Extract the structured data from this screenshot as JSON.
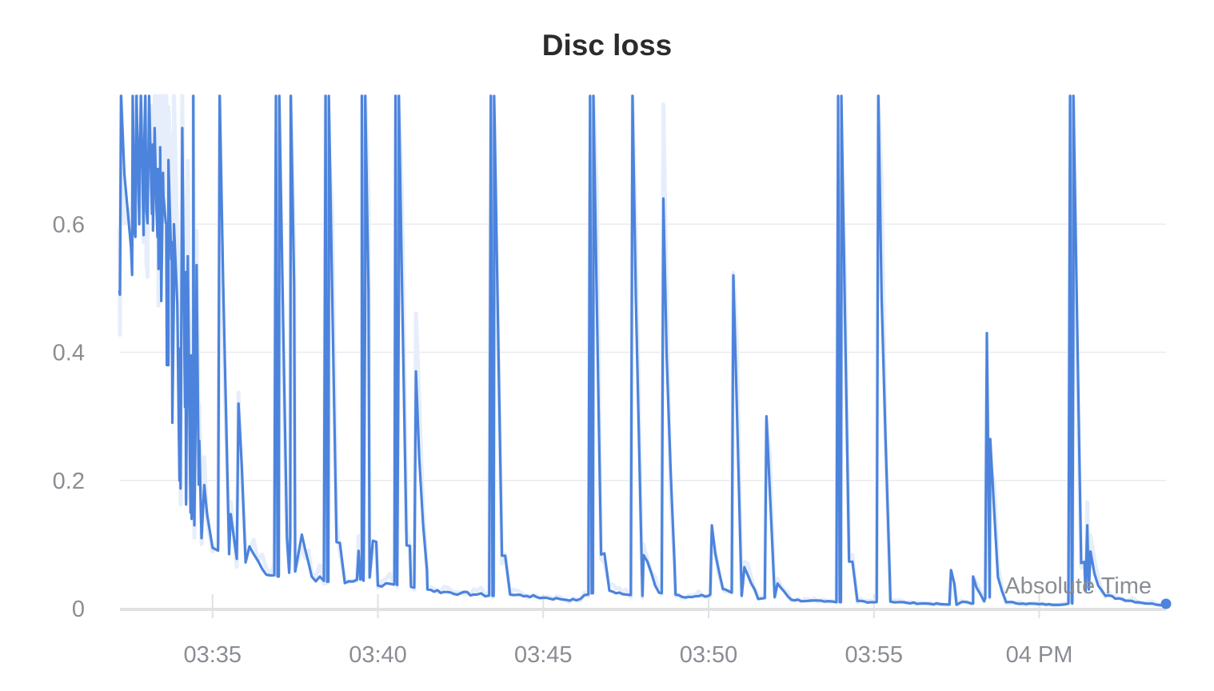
{
  "chart_data": {
    "type": "line",
    "title": "Disc loss",
    "xlabel": "Absolute Time",
    "ylabel": "",
    "ylim": [
      0,
      0.8
    ],
    "xlim": [
      "03:32:12",
      "04:03:50"
    ],
    "grid": true,
    "legend": "none",
    "y_ticks": [
      {
        "value": 0,
        "label": "0"
      },
      {
        "value": 0.2,
        "label": "0.2"
      },
      {
        "value": 0.4,
        "label": "0.4"
      },
      {
        "value": 0.6,
        "label": "0.6"
      }
    ],
    "x_ticks": [
      {
        "value": "03:35",
        "label": "03:35"
      },
      {
        "value": "03:40",
        "label": "03:40"
      },
      {
        "value": "03:45",
        "label": "03:45"
      },
      {
        "value": "03:50",
        "label": "03:50"
      },
      {
        "value": "03:55",
        "label": "03:55"
      },
      {
        "value": "04:00",
        "label": "04 PM"
      }
    ],
    "colors": {
      "line": "#4c83dc",
      "raw": "#e6eefb",
      "grid": "#e9ebef",
      "axis": "#dfe1e4",
      "tick_text": "#8a8d93"
    },
    "series": [
      {
        "baseline": [
          [
            "03:32:12",
            0.49
          ],
          [
            "03:32:40",
            0.58
          ],
          [
            "03:33:00",
            0.62
          ],
          [
            "03:33:20",
            0.58
          ],
          [
            "03:33:40",
            0.38
          ],
          [
            "03:34:00",
            0.2
          ],
          [
            "03:34:20",
            0.15
          ],
          [
            "03:34:40",
            0.11
          ],
          [
            "03:35:00",
            0.095
          ],
          [
            "03:35:30",
            0.085
          ],
          [
            "03:36:00",
            0.072
          ],
          [
            "03:36:30",
            0.062
          ],
          [
            "03:37:00",
            0.05
          ],
          [
            "03:37:30",
            0.058
          ],
          [
            "03:38:00",
            0.05
          ],
          [
            "03:38:30",
            0.042
          ],
          [
            "03:39:00",
            0.04
          ],
          [
            "03:39:30",
            0.046
          ],
          [
            "03:40:00",
            0.036
          ],
          [
            "03:40:30",
            0.038
          ],
          [
            "03:41:00",
            0.034
          ],
          [
            "03:41:30",
            0.03
          ],
          [
            "03:42:00",
            0.026
          ],
          [
            "03:42:30",
            0.024
          ],
          [
            "03:43:00",
            0.022
          ],
          [
            "03:43:30",
            0.02
          ],
          [
            "03:44:00",
            0.022
          ],
          [
            "03:44:30",
            0.02
          ],
          [
            "03:45:00",
            0.017
          ],
          [
            "03:45:30",
            0.015
          ],
          [
            "03:46:00",
            0.013
          ],
          [
            "03:46:30",
            0.024
          ],
          [
            "03:47:00",
            0.028
          ],
          [
            "03:47:30",
            0.022
          ],
          [
            "03:48:00",
            0.02
          ],
          [
            "03:48:30",
            0.025
          ],
          [
            "03:49:00",
            0.022
          ],
          [
            "03:49:30",
            0.018
          ],
          [
            "03:50:00",
            0.02
          ],
          [
            "03:50:30",
            0.03
          ],
          [
            "03:51:00",
            0.02
          ],
          [
            "03:51:30",
            0.015
          ],
          [
            "03:52:00",
            0.018
          ],
          [
            "03:52:30",
            0.014
          ],
          [
            "03:53:00",
            0.012
          ],
          [
            "03:53:30",
            0.011
          ],
          [
            "03:54:00",
            0.01
          ],
          [
            "03:54:30",
            0.012
          ],
          [
            "03:55:00",
            0.01
          ],
          [
            "03:55:30",
            0.011
          ],
          [
            "03:56:00",
            0.009
          ],
          [
            "03:56:30",
            0.008
          ],
          [
            "03:57:00",
            0.007
          ],
          [
            "03:57:30",
            0.006
          ],
          [
            "03:58:00",
            0.008
          ],
          [
            "03:58:30",
            0.018
          ],
          [
            "03:59:00",
            0.01
          ],
          [
            "03:59:30",
            0.008
          ],
          [
            "04:00:00",
            0.007
          ],
          [
            "04:00:30",
            0.006
          ],
          [
            "04:01:00",
            0.008
          ],
          [
            "04:01:30",
            0.03
          ],
          [
            "04:02:00",
            0.02
          ],
          [
            "04:02:30",
            0.015
          ],
          [
            "04:03:00",
            0.01
          ],
          [
            "04:03:50",
            0.005
          ]
        ],
        "spikes": [
          [
            "03:32:14",
            0.8
          ],
          [
            "03:32:35",
            0.8
          ],
          [
            "03:32:42",
            0.8
          ],
          [
            "03:32:50",
            0.8
          ],
          [
            "03:32:58",
            0.8
          ],
          [
            "03:33:05",
            0.8
          ],
          [
            "03:33:15",
            0.75
          ],
          [
            "03:33:25",
            0.72
          ],
          [
            "03:33:30",
            0.68
          ],
          [
            "03:33:40",
            0.7
          ],
          [
            "03:33:50",
            0.6
          ],
          [
            "03:34:05",
            0.75
          ],
          [
            "03:34:15",
            0.55
          ],
          [
            "03:34:25",
            0.8
          ],
          [
            "03:34:30",
            0.35
          ],
          [
            "03:35:13",
            0.8
          ],
          [
            "03:35:47",
            0.32
          ],
          [
            "03:36:55",
            0.8
          ],
          [
            "03:37:01",
            0.8
          ],
          [
            "03:37:22",
            0.8
          ],
          [
            "03:38:25",
            0.8
          ],
          [
            "03:38:31",
            0.8
          ],
          [
            "03:39:25",
            0.09
          ],
          [
            "03:39:31",
            0.8
          ],
          [
            "03:39:37",
            0.8
          ],
          [
            "03:40:32",
            0.8
          ],
          [
            "03:40:38",
            0.8
          ],
          [
            "03:41:09",
            0.37
          ],
          [
            "03:43:25",
            0.8
          ],
          [
            "03:43:31",
            0.8
          ],
          [
            "03:46:25",
            0.8
          ],
          [
            "03:46:31",
            0.8
          ],
          [
            "03:47:42",
            0.8
          ],
          [
            "03:48:38",
            0.64
          ],
          [
            "03:50:06",
            0.13
          ],
          [
            "03:50:45",
            0.52
          ],
          [
            "03:51:45",
            0.3
          ],
          [
            "03:53:55",
            0.8
          ],
          [
            "03:54:01",
            0.8
          ],
          [
            "03:55:08",
            0.8
          ],
          [
            "03:57:20",
            0.06
          ],
          [
            "03:58:00",
            0.05
          ],
          [
            "03:58:25",
            0.43
          ],
          [
            "04:00:56",
            0.8
          ],
          [
            "04:01:02",
            0.8
          ],
          [
            "04:01:27",
            0.13
          ]
        ]
      }
    ],
    "last_point": [
      "04:03:50",
      0.005
    ]
  }
}
